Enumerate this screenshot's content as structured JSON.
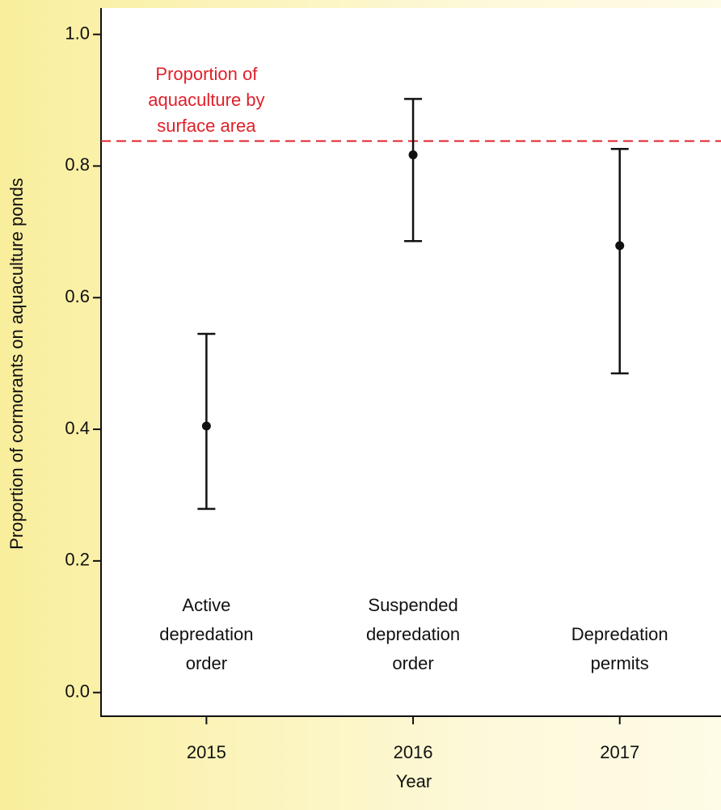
{
  "chart_data": {
    "type": "errorbar",
    "x_label": "Year",
    "y_label": "Proportion of cormorants on aquaculture ponds",
    "x": [
      2015,
      2016,
      2017
    ],
    "series": [
      {
        "color": "#111111",
        "values": [
          0.405,
          0.817,
          0.679
        ],
        "lower": [
          0.279,
          0.686,
          0.485
        ],
        "upper": [
          0.545,
          0.902,
          0.826
        ]
      }
    ],
    "annotations": [
      [
        "Active",
        "depredation",
        "order"
      ],
      [
        "Suspended",
        "depredation",
        "order"
      ],
      [
        "Depredation",
        "permits"
      ]
    ],
    "reference_line": {
      "value": 0.838,
      "color": "#e0202a",
      "label": [
        "Proportion of",
        "aquaculture by",
        "surface area"
      ]
    },
    "xlim": [
      2014.49,
      2017.49
    ],
    "xticks": [
      2015,
      2016,
      2017
    ],
    "ylim": [
      -0.036,
      1.04
    ],
    "yticks": [
      {
        "value": 0,
        "label": "0.0"
      },
      0.2,
      0.4,
      0.6,
      0.8,
      {
        "value": 1,
        "label": "1.0"
      }
    ]
  }
}
